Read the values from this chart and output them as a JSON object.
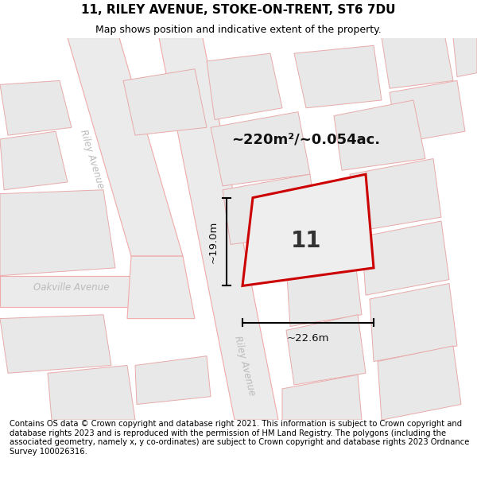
{
  "title_line1": "11, RILEY AVENUE, STOKE-ON-TRENT, ST6 7DU",
  "title_line2": "Map shows position and indicative extent of the property.",
  "footer_text": "Contains OS data © Crown copyright and database right 2021. This information is subject to Crown copyright and database rights 2023 and is reproduced with the permission of HM Land Registry. The polygons (including the associated geometry, namely x, y co-ordinates) are subject to Crown copyright and database rights 2023 Ordnance Survey 100026316.",
  "area_label": "~220m²/~0.054ac.",
  "number_label": "11",
  "dim_height": "~19.0m",
  "dim_width": "~22.6m",
  "street_label_riley_top": "Riley Avenue",
  "street_label_riley_main": "Riley Avenue",
  "street_label_oakville": "Oakville Avenue",
  "map_bg": "#f7f7f7",
  "road_fill": "#ebebeb",
  "road_stroke": "#f0aaaa",
  "parcel_fill": "#e8e8e8",
  "parcel_stroke": "#e8aaaa",
  "plot_stroke": "#cc0000",
  "plot_fill": "#eeeeee",
  "title_fontsize": 11,
  "subtitle_fontsize": 9,
  "footer_fontsize": 7.2,
  "street_color": "#bbbbbb",
  "dim_color": "#111111",
  "number_color": "#333333"
}
